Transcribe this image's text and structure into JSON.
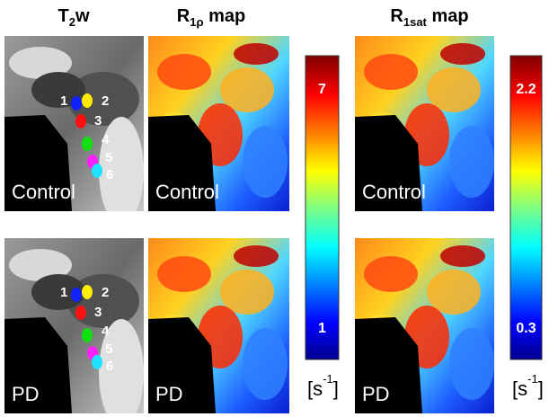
{
  "header": {
    "columns": [
      {
        "main": "T",
        "sub": "2",
        "rest": "w"
      },
      {
        "main": "R",
        "sub": "1ρ",
        "rest": " map"
      },
      {
        "main": "R",
        "sub": "1sat",
        "rest": " map"
      }
    ]
  },
  "rows": [
    {
      "label": "Control"
    },
    {
      "label": "PD"
    }
  ],
  "regions": [
    "1",
    "2",
    "3",
    "4",
    "5",
    "6"
  ],
  "colorbars": [
    {
      "top": "7",
      "bottom": "1"
    },
    {
      "top": "2.2",
      "bottom": "0.3"
    }
  ],
  "unit": {
    "main": "[s",
    "sup": "-1",
    "close": "]"
  }
}
